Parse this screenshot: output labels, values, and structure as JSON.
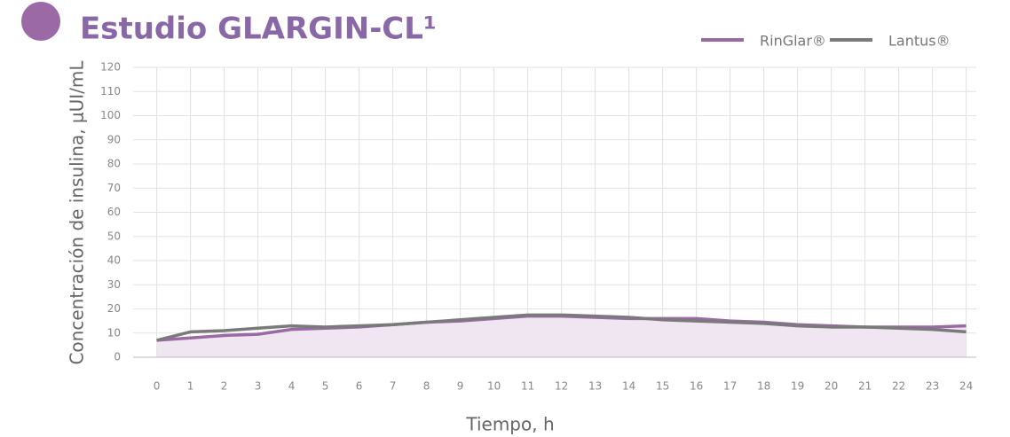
{
  "chart_data": {
    "type": "line",
    "title": "Estudio GLARGIN-CL¹",
    "ylabel": "Concentración de insulina, μUI/mL",
    "xlabel": "Tiempo, h",
    "x": [
      0,
      1,
      2,
      3,
      4,
      5,
      6,
      7,
      8,
      9,
      10,
      11,
      12,
      13,
      14,
      15,
      16,
      17,
      18,
      19,
      20,
      21,
      22,
      23,
      24
    ],
    "series": [
      {
        "name": "RinGlar®",
        "color": "#9b6aa6",
        "fill": "#efe6f1",
        "values": [
          7,
          8,
          9,
          9.5,
          11.5,
          12,
          12.5,
          13.5,
          14.5,
          15,
          16,
          17,
          17,
          16.5,
          16,
          16,
          16,
          15,
          14.5,
          13.5,
          13,
          12.5,
          12.5,
          12.5,
          13
        ]
      },
      {
        "name": "Lantus®",
        "color": "#7a7a7a",
        "values": [
          7,
          10.5,
          11,
          12,
          13,
          12.5,
          13,
          13.5,
          14.5,
          15.5,
          16.5,
          17.5,
          17.5,
          17,
          16.5,
          15.5,
          15,
          14.5,
          14,
          13,
          12.5,
          12.5,
          12,
          11.5,
          10.5
        ]
      }
    ],
    "xlim": [
      -0.7,
      24.3
    ],
    "ylim": [
      0,
      120
    ],
    "xticks": [
      0,
      1,
      2,
      3,
      4,
      5,
      6,
      7,
      8,
      9,
      10,
      11,
      12,
      13,
      14,
      15,
      16,
      17,
      18,
      19,
      20,
      21,
      22,
      23,
      24
    ],
    "yticks": [
      0,
      10,
      20,
      30,
      40,
      50,
      60,
      70,
      80,
      90,
      100,
      110,
      120
    ],
    "grid": true
  }
}
